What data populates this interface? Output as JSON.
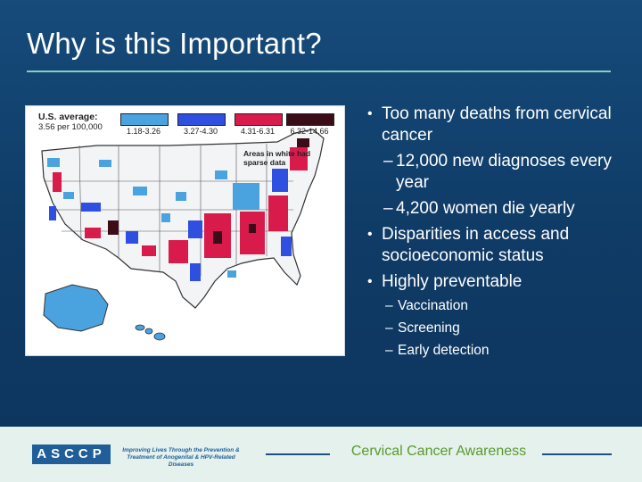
{
  "slide": {
    "title": "Why is this Important?",
    "accent_color": "#7fd3c2",
    "background_color": "#113d67"
  },
  "map": {
    "average_label": "U.S. average:",
    "average_value": "3.56 per 100,000",
    "legend": [
      {
        "range": "1.18-3.26",
        "color": "#4aa3df"
      },
      {
        "range": "3.27-4.30",
        "color": "#2f4fe0"
      },
      {
        "range": "4.31-6.31",
        "color": "#d81b4a"
      },
      {
        "range": "6.32-14.66",
        "color": "#3a0d18"
      }
    ],
    "note": "Areas in white had sparse data"
  },
  "bullets": [
    {
      "level": 1,
      "text": "Too many deaths from cervical cancer"
    },
    {
      "level": 2,
      "text": "12,000 new diagnoses every year"
    },
    {
      "level": 2,
      "text": "4,200 women die yearly"
    },
    {
      "level": 1,
      "text": "Disparities in access and socioeconomic status"
    },
    {
      "level": 1,
      "text": "Highly preventable"
    },
    {
      "level": 3,
      "text": "Vaccination"
    },
    {
      "level": 3,
      "text": "Screening"
    },
    {
      "level": 3,
      "text": "Early detection"
    }
  ],
  "footer": {
    "logo_text": "ASCCP",
    "tagline": "Improving Lives Through the Prevention & Treatment of Anogenital & HPV-Related Diseases",
    "title": "Cervical Cancer Awareness",
    "title_color": "#5a9a2c"
  }
}
